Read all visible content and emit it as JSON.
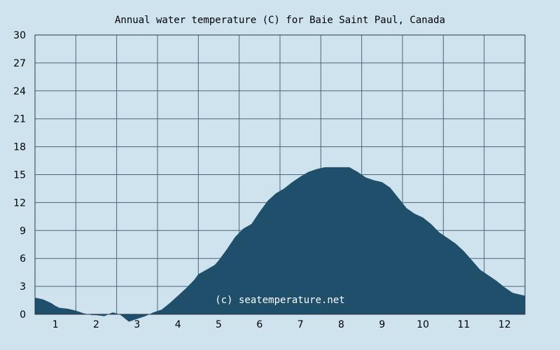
{
  "chart_data": {
    "type": "area",
    "title": "Annual water temperature (C) for Baie Saint Paul, Canada",
    "xlabel": "",
    "ylabel": "",
    "x_tick_labels": [
      "1",
      "2",
      "3",
      "4",
      "5",
      "6",
      "7",
      "8",
      "9",
      "10",
      "11",
      "12"
    ],
    "y_ticks": [
      0,
      3,
      6,
      9,
      12,
      15,
      18,
      21,
      24,
      27,
      30
    ],
    "ylim": [
      0,
      30
    ],
    "xlim": [
      0.5,
      12.5
    ],
    "grid": true,
    "credit": "(c) seatemperature.net",
    "colors": {
      "background": "#cfe3ee",
      "plot_background": "#cfe3ee",
      "area_fill": "#1f4f6b",
      "grid": "#4a6478",
      "axis": "#2a3a48"
    },
    "series": [
      {
        "x": [
          0.5,
          0.7,
          0.9,
          1.0,
          1.1,
          1.3,
          1.5,
          1.7,
          1.9,
          2.0,
          2.2,
          2.4,
          2.5,
          2.6,
          2.8,
          3.0,
          3.2,
          3.4,
          3.6,
          3.8,
          4.0,
          4.2,
          4.4,
          4.5,
          4.7,
          4.9,
          5.0,
          5.2,
          5.4,
          5.6,
          5.8,
          6.0,
          6.2,
          6.4,
          6.6,
          6.8,
          7.0,
          7.2,
          7.4,
          7.6,
          7.8,
          8.0,
          8.2,
          8.4,
          8.6,
          8.8,
          9.0,
          9.2,
          9.4,
          9.6,
          9.8,
          10.0,
          10.2,
          10.4,
          10.6,
          10.8,
          11.0,
          11.2,
          11.4,
          11.6,
          11.8,
          12.0,
          12.2,
          12.4,
          12.5
        ],
        "y": [
          1.8,
          1.6,
          1.2,
          0.9,
          0.7,
          0.6,
          0.4,
          0.1,
          -0.1,
          -0.1,
          -0.2,
          0.2,
          0.1,
          -0.1,
          -0.8,
          -0.5,
          -0.2,
          0.2,
          0.5,
          1.2,
          2.0,
          2.8,
          3.7,
          4.3,
          4.8,
          5.3,
          5.8,
          7.0,
          8.3,
          9.2,
          9.7,
          11.0,
          12.2,
          13.0,
          13.5,
          14.2,
          14.8,
          15.3,
          15.6,
          15.8,
          15.8,
          15.8,
          15.8,
          15.3,
          14.7,
          14.4,
          14.2,
          13.6,
          12.5,
          11.4,
          10.8,
          10.4,
          9.7,
          8.8,
          8.2,
          7.6,
          6.8,
          5.8,
          4.8,
          4.2,
          3.6,
          2.9,
          2.3,
          2.1,
          2.0
        ]
      }
    ]
  }
}
